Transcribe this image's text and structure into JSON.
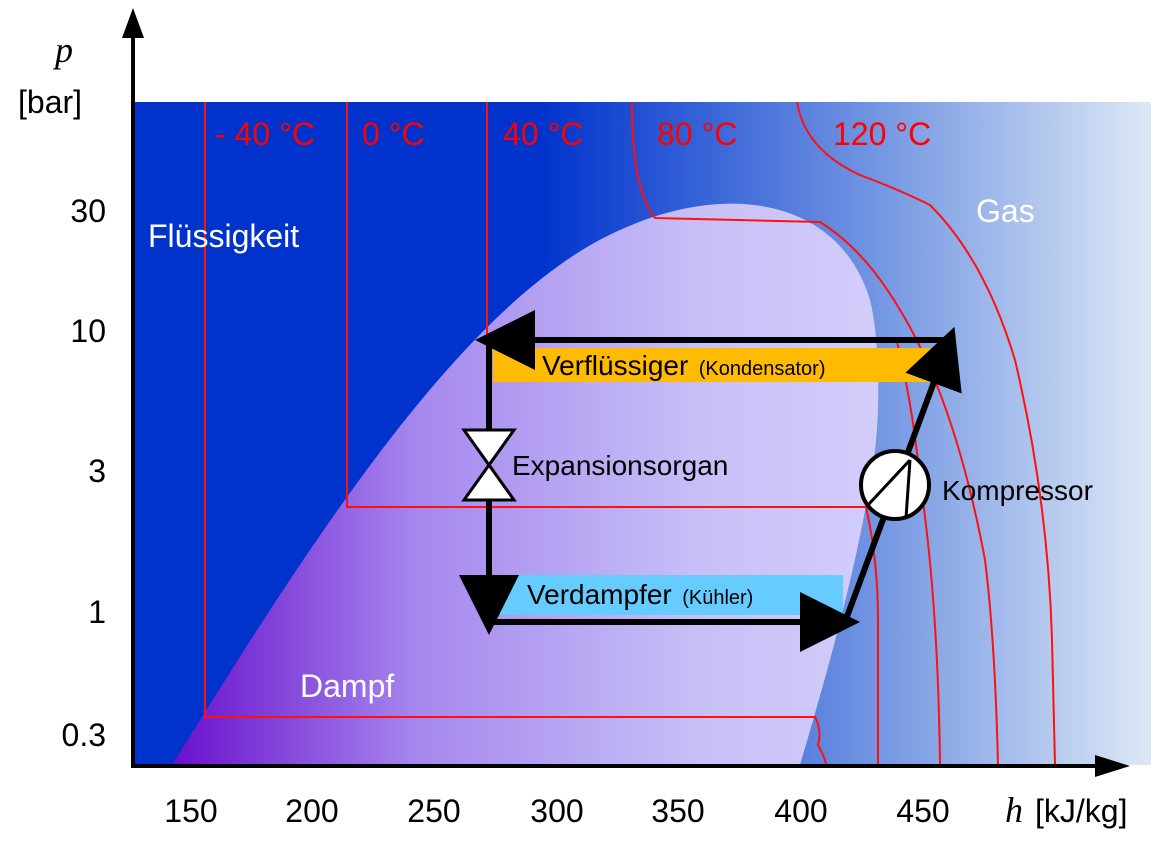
{
  "axes": {
    "y_symbol": "p",
    "y_unit": "[bar]",
    "x_symbol": "h",
    "x_unit": "[kJ/kg]",
    "y_ticks": [
      "30",
      "10",
      "3",
      "1",
      "0.3"
    ],
    "x_ticks": [
      "150",
      "200",
      "250",
      "300",
      "350",
      "400",
      "450"
    ]
  },
  "isotherms": [
    "- 40 °C",
    "0 °C",
    "40 °C",
    "80 °C",
    "120 °C"
  ],
  "regions": {
    "liquid": "Flüssigkeit",
    "gas": "Gas",
    "vapor": "Dampf"
  },
  "components": {
    "condenser": "Verflüssiger",
    "condenser_note": "(Kondensator)",
    "expansion": "Expansionsorgan",
    "evaporator": "Verdampfer",
    "evaporator_note": "(Kühler)",
    "compressor": "Kompressor"
  },
  "colors": {
    "liquid_region": "#0033cc",
    "isotherm": "#ff0000",
    "condenser_box": "#ffbb00",
    "evaporator_box": "#66ccff",
    "cycle": "#000000"
  }
}
